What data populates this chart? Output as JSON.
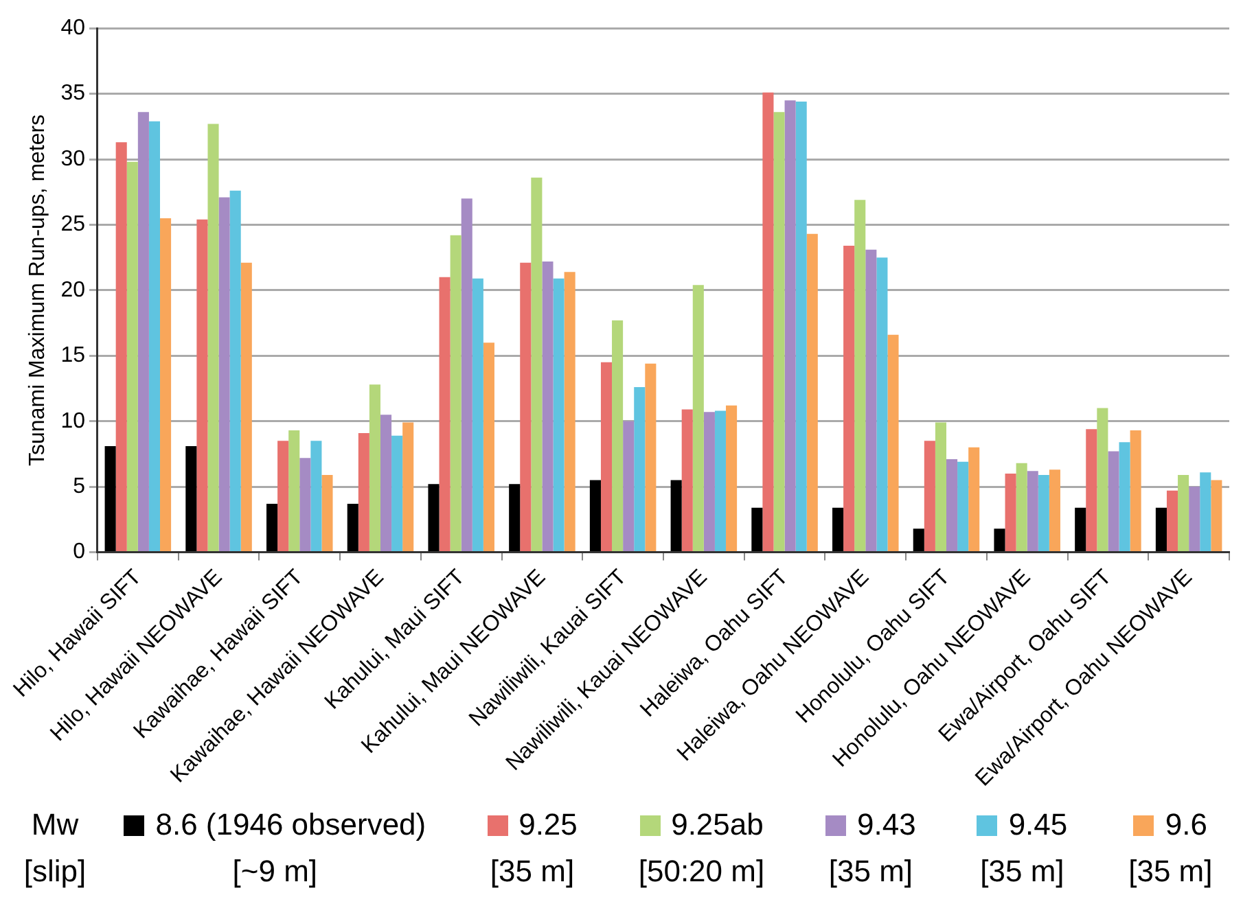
{
  "chart_data": {
    "type": "bar",
    "ylabel": "Tsunami Maximum Run-ups, meters",
    "legend_title": "Mw [slip]",
    "legend": "bottom",
    "grid": "y",
    "categories": [
      "Hilo, Hawaii SIFT",
      "Hilo, Hawaii NEOWAVE",
      "Kawaihae, Hawaii SIFT",
      "Kawaihae, Hawaii NEOWAVE",
      "Kahului, Maui SIFT",
      "Kahului, Maui NEOWAVE",
      "Nawiliwili, Kauai SIFT",
      "Nawiliwili, Kauai NEOWAVE",
      "Haleiwa, Oahu SIFT",
      "Haleiwa, Oahu NEOWAVE",
      "Honolulu, Oahu SIFT",
      "Honolulu, Oahu NEOWAVE",
      "Ewa/Airport, Oahu SIFT",
      "Ewa/Airport, Oahu NEOWAVE"
    ],
    "ylim": [
      0,
      40
    ],
    "yticks": [
      0,
      5,
      10,
      15,
      20,
      25,
      30,
      35,
      40
    ],
    "series": [
      {
        "name": "8.6 (1946 observed) [~9 m]",
        "color": "#000000",
        "values": [
          8.1,
          8.1,
          3.7,
          3.7,
          5.2,
          5.2,
          5.5,
          5.5,
          3.4,
          3.4,
          1.8,
          1.8,
          3.4,
          3.4
        ]
      },
      {
        "name": "9.25 [35 m]",
        "color": "#e8716d",
        "values": [
          31.3,
          25.4,
          8.5,
          9.1,
          21.0,
          22.1,
          14.5,
          10.9,
          35.1,
          23.4,
          8.5,
          6.0,
          9.4,
          4.7
        ]
      },
      {
        "name": "9.25ab [50:20 m]",
        "color": "#b4d77a",
        "values": [
          29.8,
          32.7,
          9.3,
          12.8,
          24.2,
          28.6,
          17.7,
          20.4,
          33.6,
          26.9,
          9.9,
          6.8,
          11.0,
          5.9
        ]
      },
      {
        "name": "9.43 [35 m]",
        "color": "#a58bc4",
        "values": [
          33.6,
          27.1,
          7.2,
          10.5,
          27.0,
          22.2,
          10.0,
          10.7,
          34.5,
          23.1,
          7.1,
          6.2,
          7.7,
          5.0
        ]
      },
      {
        "name": "9.45 [35 m]",
        "color": "#5fc4e0",
        "values": [
          32.9,
          27.6,
          8.5,
          8.9,
          20.9,
          20.9,
          12.6,
          10.8,
          34.4,
          22.5,
          6.9,
          5.9,
          8.4,
          6.1
        ]
      },
      {
        "name": "9.6 [35 m]",
        "color": "#f9a65a",
        "values": [
          25.5,
          22.1,
          5.9,
          9.9,
          16.0,
          21.4,
          14.4,
          11.2,
          24.3,
          16.6,
          8.0,
          6.3,
          9.3,
          5.5
        ]
      }
    ]
  }
}
